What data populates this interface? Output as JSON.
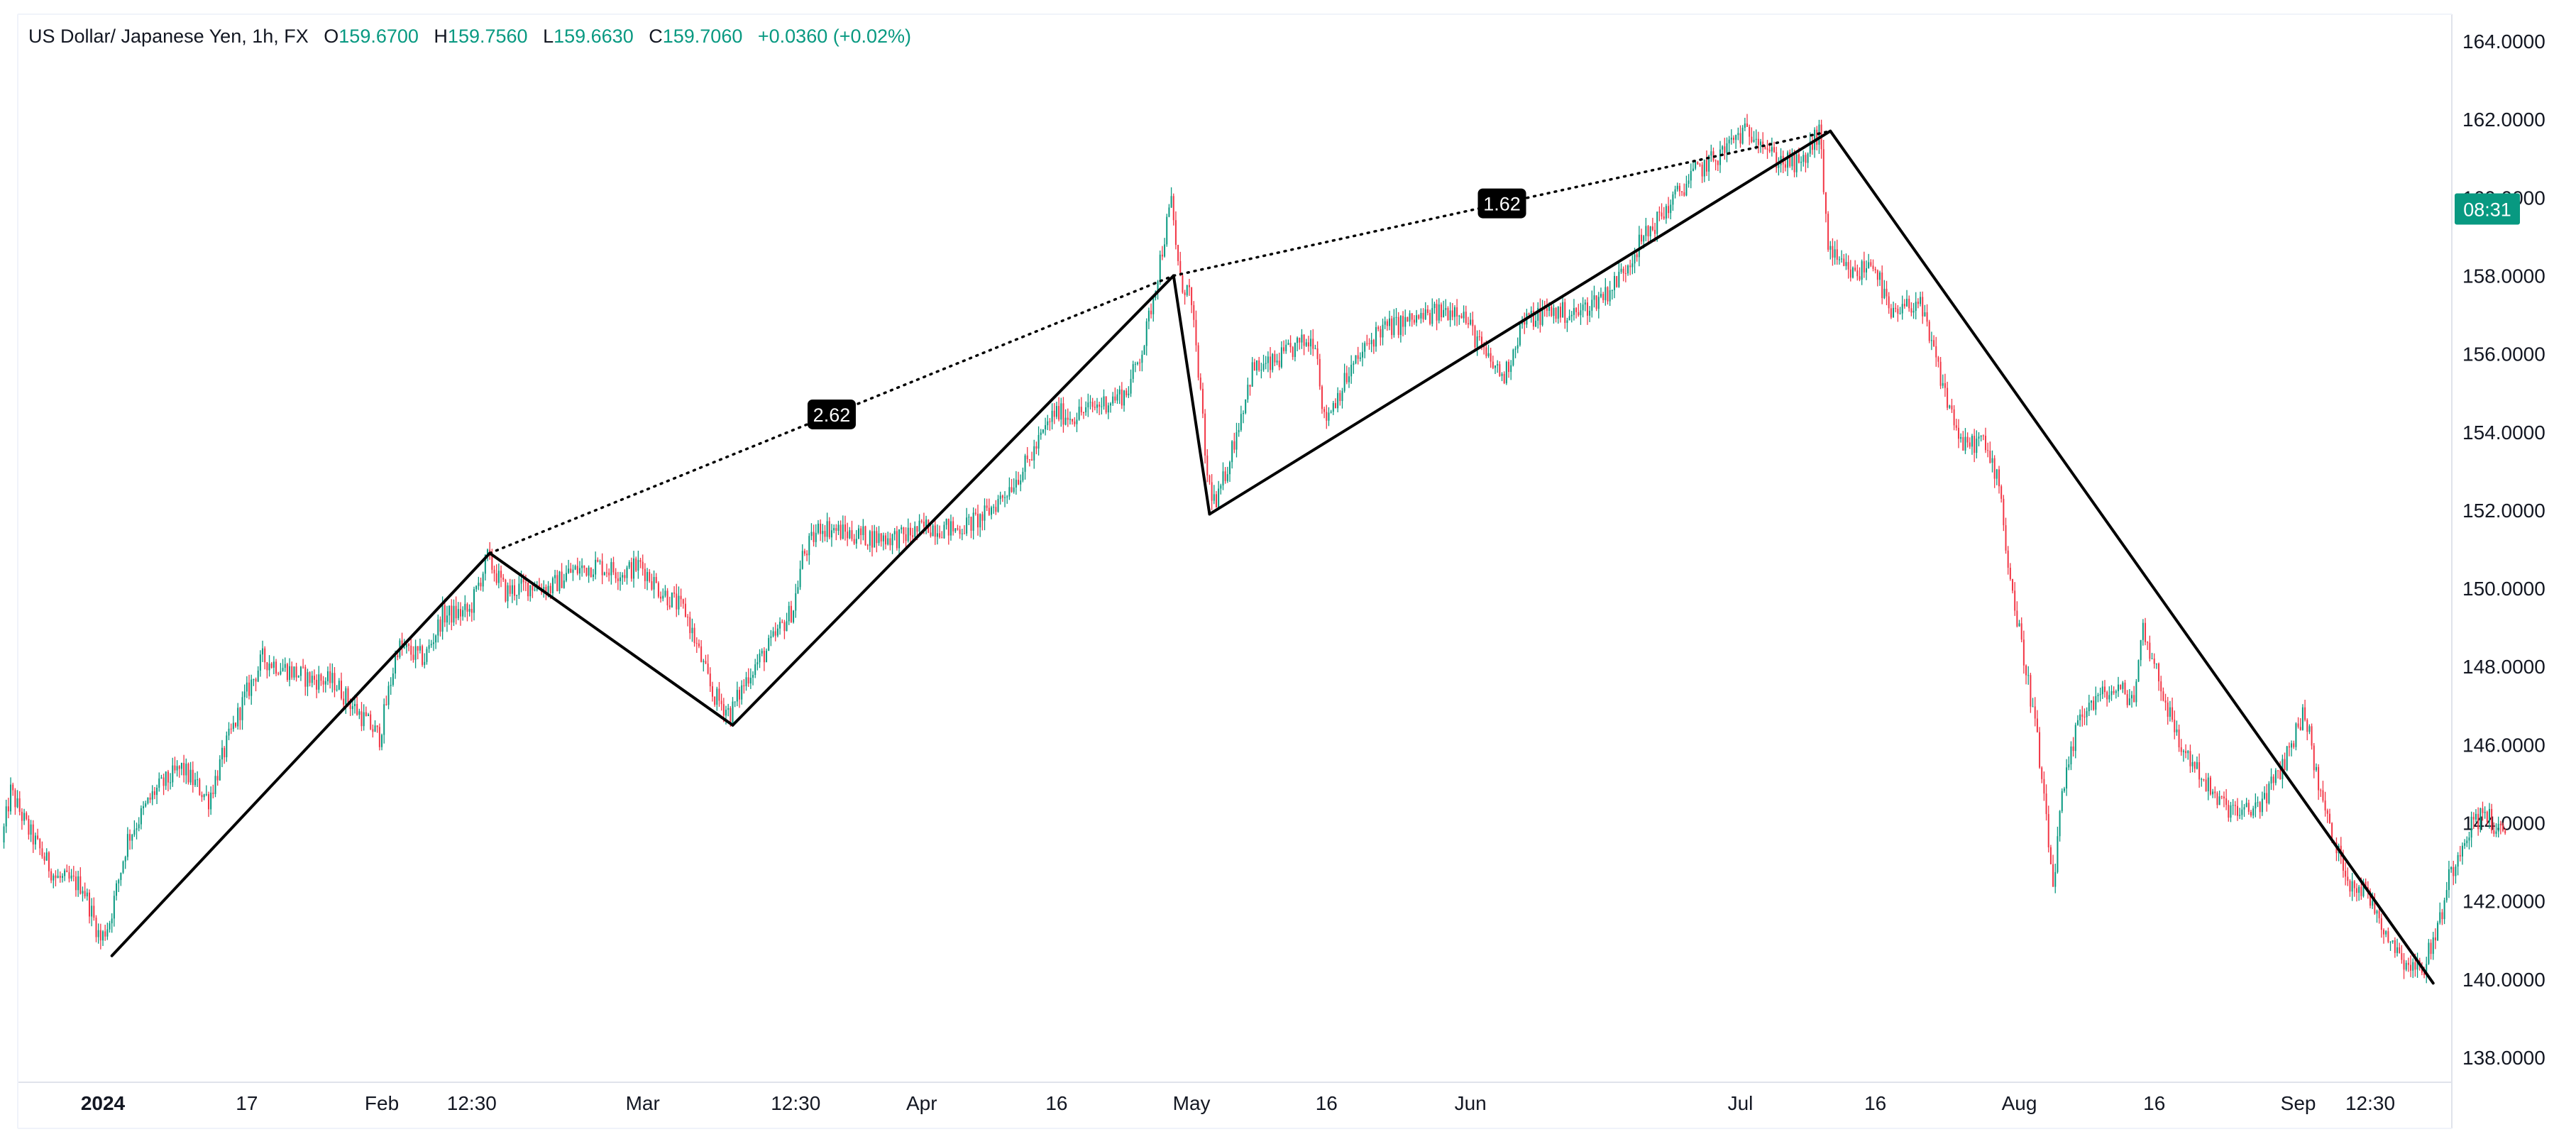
{
  "legend": {
    "symbol": "US Dollar/ Japanese Yen, 1h, FX",
    "open_label": "O",
    "open": "159.6700",
    "high_label": "H",
    "high": "159.7560",
    "low_label": "L",
    "low": "159.6630",
    "close_label": "C",
    "close": "159.7060",
    "change": "+0.0360 (+0.02%)"
  },
  "price_tag": {
    "time": "08:31",
    "color": "#089981"
  },
  "colors": {
    "up": "#089981",
    "down": "#f23645",
    "pattern": "#000000",
    "axis_text": "#131722",
    "grid_border": "#e0e3eb"
  },
  "chart_data": {
    "type": "candlestick",
    "symbol": "US Dollar/ Japanese Yen",
    "interval": "1h",
    "ylim": [
      137.0,
      164.6
    ],
    "y_ticks": [
      "164.0000",
      "162.0000",
      "160.0000",
      "158.0000",
      "156.0000",
      "154.0000",
      "152.0000",
      "150.0000",
      "148.0000",
      "146.0000",
      "144.0000",
      "142.0000",
      "140.0000",
      "138.0000"
    ],
    "y_tick_values": [
      164,
      162,
      160,
      158,
      156,
      154,
      152,
      150,
      148,
      146,
      144,
      142,
      140,
      138
    ],
    "x_tick_labels": [
      {
        "label": "2024",
        "date": "2024-01-01",
        "bold": true
      },
      {
        "label": "17",
        "date": "2024-01-17"
      },
      {
        "label": "Feb",
        "date": "2024-02-01"
      },
      {
        "label": "12:30",
        "date": "2024-02-11"
      },
      {
        "label": "Mar",
        "date": "2024-03-01"
      },
      {
        "label": "12:30",
        "date": "2024-03-18"
      },
      {
        "label": "Apr",
        "date": "2024-04-01"
      },
      {
        "label": "16",
        "date": "2024-04-16"
      },
      {
        "label": "May",
        "date": "2024-05-01"
      },
      {
        "label": "16",
        "date": "2024-05-16"
      },
      {
        "label": "Jun",
        "date": "2024-06-01"
      },
      {
        "label": "Jul",
        "date": "2024-07-01"
      },
      {
        "label": "16",
        "date": "2024-07-16"
      },
      {
        "label": "Aug",
        "date": "2024-08-01"
      },
      {
        "label": "16",
        "date": "2024-08-16"
      },
      {
        "label": "Sep",
        "date": "2024-09-01"
      },
      {
        "label": "12:30",
        "date": "2024-09-09"
      }
    ],
    "price_path": [
      [
        "2023-12-21",
        143.5
      ],
      [
        "2023-12-22",
        144.8
      ],
      [
        "2023-12-24",
        143.8
      ],
      [
        "2023-12-27",
        142.6
      ],
      [
        "2023-12-30",
        142.4
      ],
      [
        "2024-01-01",
        141.0
      ],
      [
        "2024-01-02",
        141.5
      ],
      [
        "2024-01-04",
        143.6
      ],
      [
        "2024-01-07",
        144.8
      ],
      [
        "2024-01-10",
        145.4
      ],
      [
        "2024-01-13",
        144.6
      ],
      [
        "2024-01-15",
        146.0
      ],
      [
        "2024-01-17",
        147.2
      ],
      [
        "2024-01-19",
        148.2
      ],
      [
        "2024-01-21",
        148.0
      ],
      [
        "2024-01-24",
        147.7
      ],
      [
        "2024-01-27",
        147.6
      ],
      [
        "2024-01-29",
        147.0
      ],
      [
        "2024-02-01",
        146.2
      ],
      [
        "2024-02-03",
        148.5
      ],
      [
        "2024-02-06",
        148.2
      ],
      [
        "2024-02-08",
        149.3
      ],
      [
        "2024-02-11",
        149.4
      ],
      [
        "2024-02-13",
        150.8
      ],
      [
        "2024-02-15",
        149.9
      ],
      [
        "2024-02-18",
        150.1
      ],
      [
        "2024-02-20",
        150.0
      ],
      [
        "2024-02-22",
        150.4
      ],
      [
        "2024-02-25",
        150.6
      ],
      [
        "2024-02-28",
        150.4
      ],
      [
        "2024-03-01",
        150.6
      ],
      [
        "2024-03-03",
        150.0
      ],
      [
        "2024-03-06",
        149.4
      ],
      [
        "2024-03-09",
        147.3
      ],
      [
        "2024-03-11",
        146.8
      ],
      [
        "2024-03-13",
        147.8
      ],
      [
        "2024-03-15",
        148.4
      ],
      [
        "2024-03-18",
        149.5
      ],
      [
        "2024-03-19",
        150.8
      ],
      [
        "2024-03-21",
        151.6
      ],
      [
        "2024-03-24",
        151.4
      ],
      [
        "2024-03-27",
        151.3
      ],
      [
        "2024-03-30",
        151.3
      ],
      [
        "2024-04-02",
        151.6
      ],
      [
        "2024-04-05",
        151.5
      ],
      [
        "2024-04-08",
        151.8
      ],
      [
        "2024-04-10",
        152.3
      ],
      [
        "2024-04-13",
        153.2
      ],
      [
        "2024-04-16",
        154.5
      ],
      [
        "2024-04-18",
        154.4
      ],
      [
        "2024-04-21",
        154.7
      ],
      [
        "2024-04-24",
        155.0
      ],
      [
        "2024-04-26",
        156.3
      ],
      [
        "2024-04-29",
        159.9
      ],
      [
        "2024-04-30",
        157.8
      ],
      [
        "2024-05-01",
        157.6
      ],
      [
        "2024-05-02",
        155.6
      ],
      [
        "2024-05-03",
        152.8
      ],
      [
        "2024-05-04",
        152.1
      ],
      [
        "2024-05-06",
        153.8
      ],
      [
        "2024-05-08",
        155.6
      ],
      [
        "2024-05-10",
        155.7
      ],
      [
        "2024-05-13",
        156.2
      ],
      [
        "2024-05-15",
        156.4
      ],
      [
        "2024-05-16",
        154.3
      ],
      [
        "2024-05-19",
        155.6
      ],
      [
        "2024-05-22",
        156.6
      ],
      [
        "2024-05-25",
        156.8
      ],
      [
        "2024-05-28",
        157.0
      ],
      [
        "2024-05-31",
        157.2
      ],
      [
        "2024-06-03",
        155.9
      ],
      [
        "2024-06-05",
        155.4
      ],
      [
        "2024-06-07",
        156.8
      ],
      [
        "2024-06-10",
        157.1
      ],
      [
        "2024-06-13",
        157.0
      ],
      [
        "2024-06-17",
        157.7
      ],
      [
        "2024-06-20",
        158.8
      ],
      [
        "2024-06-23",
        159.7
      ],
      [
        "2024-06-26",
        160.6
      ],
      [
        "2024-06-29",
        161.1
      ],
      [
        "2024-07-01",
        161.6
      ],
      [
        "2024-07-03",
        161.7
      ],
      [
        "2024-07-05",
        161.0
      ],
      [
        "2024-07-08",
        160.8
      ],
      [
        "2024-07-10",
        161.7
      ],
      [
        "2024-07-11",
        158.8
      ],
      [
        "2024-07-12",
        158.3
      ],
      [
        "2024-07-14",
        158.0
      ],
      [
        "2024-07-16",
        158.4
      ],
      [
        "2024-07-18",
        156.9
      ],
      [
        "2024-07-21",
        157.4
      ],
      [
        "2024-07-24",
        155.0
      ],
      [
        "2024-07-26",
        153.6
      ],
      [
        "2024-07-28",
        153.8
      ],
      [
        "2024-07-30",
        152.8
      ],
      [
        "2024-07-31",
        150.6
      ],
      [
        "2024-08-01",
        149.2
      ],
      [
        "2024-08-03",
        146.6
      ],
      [
        "2024-08-05",
        142.4
      ],
      [
        "2024-08-06",
        144.6
      ],
      [
        "2024-08-08",
        146.8
      ],
      [
        "2024-08-10",
        147.2
      ],
      [
        "2024-08-12",
        147.4
      ],
      [
        "2024-08-14",
        147.2
      ],
      [
        "2024-08-15",
        149.0
      ],
      [
        "2024-08-17",
        147.5
      ],
      [
        "2024-08-19",
        146.0
      ],
      [
        "2024-08-21",
        145.4
      ],
      [
        "2024-08-23",
        144.6
      ],
      [
        "2024-08-26",
        144.2
      ],
      [
        "2024-08-28",
        144.5
      ],
      [
        "2024-08-30",
        145.2
      ],
      [
        "2024-09-02",
        146.9
      ],
      [
        "2024-09-03",
        145.5
      ],
      [
        "2024-09-05",
        143.6
      ],
      [
        "2024-09-07",
        142.5
      ],
      [
        "2024-09-09",
        142.2
      ],
      [
        "2024-09-11",
        141.2
      ],
      [
        "2024-09-13",
        140.5
      ],
      [
        "2024-09-15",
        140.2
      ],
      [
        "2024-09-17",
        141.5
      ],
      [
        "2024-09-18",
        142.6
      ],
      [
        "2024-09-20",
        143.8
      ],
      [
        "2024-09-22",
        144.3
      ],
      [
        "2024-09-24",
        143.6
      ]
    ],
    "abcd_pattern": {
      "points": [
        [
          "2024-01-02",
          140.6
        ],
        [
          "2024-02-13",
          150.9
        ],
        [
          "2024-03-11",
          146.5
        ],
        [
          "2024-04-29",
          158.0
        ],
        [
          "2024-05-03",
          151.9
        ],
        [
          "2024-07-11",
          161.7
        ],
        [
          "2024-09-16",
          139.9
        ]
      ],
      "ratios": [
        {
          "label": "2.62",
          "from": [
            "2024-02-13",
            150.9
          ],
          "to": [
            "2024-04-29",
            158.0
          ]
        },
        {
          "label": "1.62",
          "from": [
            "2024-04-29",
            158.0
          ],
          "to": [
            "2024-07-11",
            161.7
          ]
        }
      ]
    }
  }
}
